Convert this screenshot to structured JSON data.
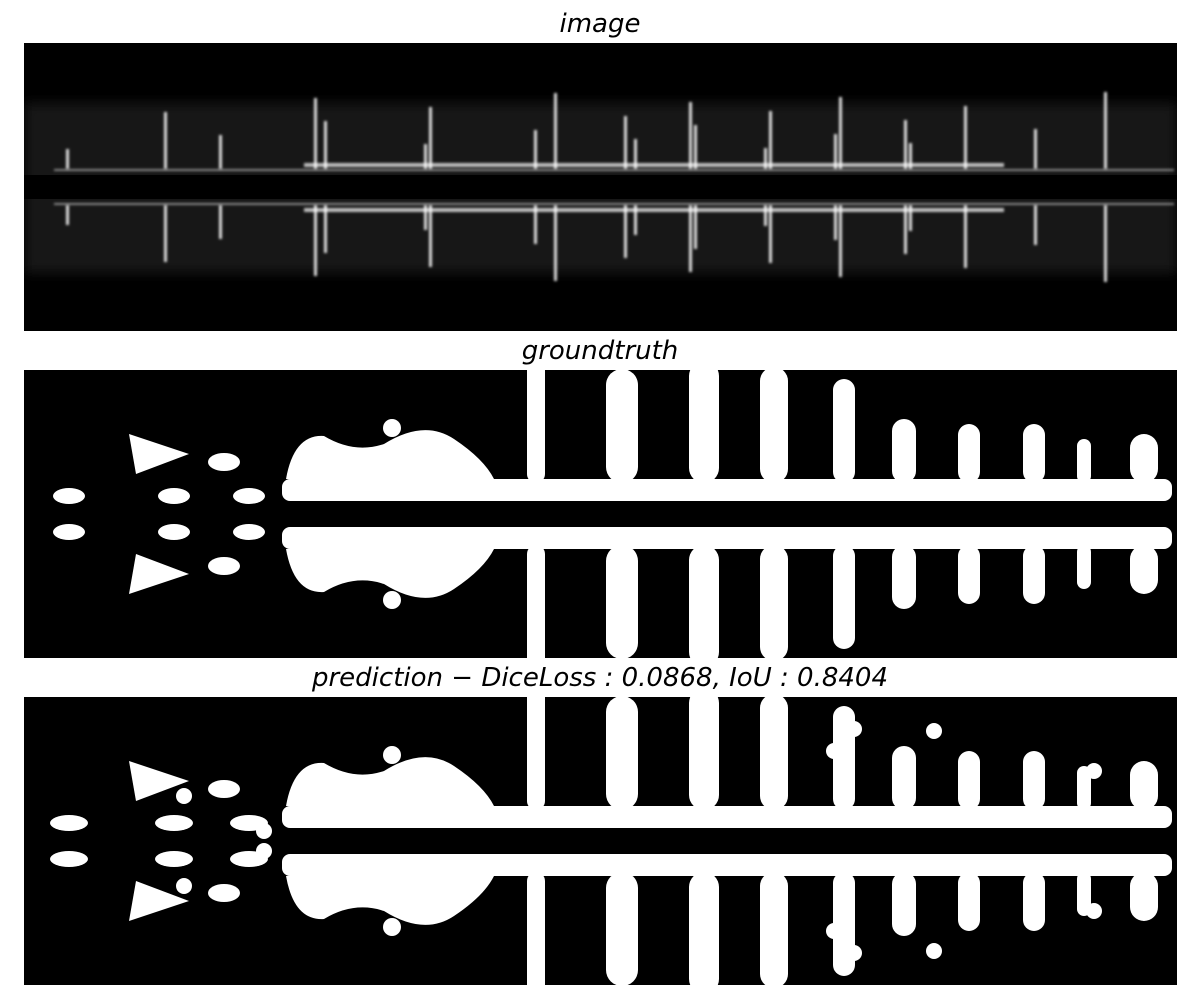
{
  "figure": {
    "panels": [
      {
        "id": "image",
        "title": "image"
      },
      {
        "id": "groundtruth",
        "title": "groundtruth"
      },
      {
        "id": "prediction",
        "title": "prediction − DiceLoss : 0.0868, IoU : 0.8404"
      }
    ],
    "metrics": {
      "dice_loss": 0.0868,
      "iou": 0.8404
    },
    "colors": {
      "background": "#000000",
      "foreground": "#ffffff"
    }
  }
}
